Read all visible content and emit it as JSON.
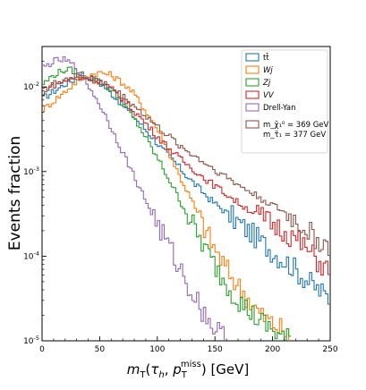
{
  "chart_data": {
    "type": "line",
    "style": "step-histogram",
    "xlabel": "m_T(τ_h, p_T^miss) [GeV]",
    "ylabel": "Events fraction",
    "xlim": [
      0,
      250
    ],
    "ylim": [
      1e-05,
      0.03
    ],
    "yscale": "log",
    "x_ticks": [
      0,
      50,
      100,
      150,
      200,
      250
    ],
    "y_ticks": [
      {
        "value": 0.01,
        "base": "10",
        "exp": "-2"
      },
      {
        "value": 0.001,
        "base": "10",
        "exp": "-3"
      },
      {
        "value": 0.0001,
        "base": "10",
        "exp": "-4"
      },
      {
        "value": 1e-05,
        "base": "10",
        "exp": "-5"
      }
    ],
    "grid": false,
    "legend_position": "top-right",
    "series": [
      {
        "name": "tt̄",
        "color": "#1f77b4",
        "points": [
          [
            2,
            0.0075
          ],
          [
            10,
            0.0088
          ],
          [
            20,
            0.0108
          ],
          [
            30,
            0.0125
          ],
          [
            38,
            0.0133
          ],
          [
            45,
            0.0125
          ],
          [
            55,
            0.0098
          ],
          [
            65,
            0.0072
          ],
          [
            75,
            0.0052
          ],
          [
            85,
            0.0037
          ],
          [
            95,
            0.0026
          ],
          [
            105,
            0.0018
          ],
          [
            115,
            0.0013
          ],
          [
            125,
            0.0009
          ],
          [
            135,
            0.00066
          ],
          [
            145,
            0.00048
          ],
          [
            155,
            0.00037
          ],
          [
            165,
            0.00029
          ],
          [
            175,
            0.00022
          ],
          [
            185,
            0.00017
          ],
          [
            195,
            0.00013
          ],
          [
            205,
            0.0001
          ],
          [
            215,
            8e-05
          ],
          [
            225,
            6e-05
          ],
          [
            235,
            4.5e-05
          ],
          [
            245,
            3.5e-05
          ],
          [
            250,
            3.2e-05
          ]
        ]
      },
      {
        "name": "Wj",
        "color": "#ff7f0e",
        "points": [
          [
            2,
            0.0055
          ],
          [
            10,
            0.0068
          ],
          [
            20,
            0.0088
          ],
          [
            30,
            0.0115
          ],
          [
            40,
            0.0138
          ],
          [
            50,
            0.0148
          ],
          [
            60,
            0.0138
          ],
          [
            70,
            0.0112
          ],
          [
            80,
            0.0082
          ],
          [
            90,
            0.0052
          ],
          [
            100,
            0.0032
          ],
          [
            110,
            0.0017
          ],
          [
            120,
            0.00085
          ],
          [
            130,
            0.00045
          ],
          [
            140,
            0.00023
          ],
          [
            150,
            0.00012
          ],
          [
            160,
            7e-05
          ],
          [
            170,
            4.5e-05
          ],
          [
            180,
            3e-05
          ],
          [
            190,
            2e-05
          ],
          [
            200,
            1.6e-05
          ],
          [
            210,
            1.3e-05
          ],
          [
            215,
            1e-05
          ]
        ]
      },
      {
        "name": "Zj",
        "color": "#2ca02c",
        "points": [
          [
            2,
            0.011
          ],
          [
            10,
            0.0138
          ],
          [
            20,
            0.016
          ],
          [
            28,
            0.0155
          ],
          [
            35,
            0.0142
          ],
          [
            45,
            0.0125
          ],
          [
            55,
            0.0105
          ],
          [
            65,
            0.0078
          ],
          [
            75,
            0.0052
          ],
          [
            85,
            0.0033
          ],
          [
            95,
            0.0019
          ],
          [
            105,
            0.0011
          ],
          [
            115,
            0.0006
          ],
          [
            125,
            0.00033
          ],
          [
            135,
            0.00018
          ],
          [
            145,
            0.0001
          ],
          [
            155,
            6e-05
          ],
          [
            165,
            3.8e-05
          ],
          [
            175,
            2.6e-05
          ],
          [
            185,
            1.9e-05
          ],
          [
            195,
            1.5e-05
          ],
          [
            205,
            1.2e-05
          ],
          [
            215,
            1e-05
          ]
        ]
      },
      {
        "name": "VV",
        "color": "#d62728",
        "points": [
          [
            2,
            0.0095
          ],
          [
            10,
            0.0105
          ],
          [
            20,
            0.0118
          ],
          [
            30,
            0.0128
          ],
          [
            40,
            0.0128
          ],
          [
            50,
            0.0115
          ],
          [
            60,
            0.0095
          ],
          [
            70,
            0.0072
          ],
          [
            80,
            0.0052
          ],
          [
            90,
            0.0037
          ],
          [
            100,
            0.0026
          ],
          [
            110,
            0.0019
          ],
          [
            120,
            0.0014
          ],
          [
            130,
            0.0011
          ],
          [
            140,
            0.00085
          ],
          [
            150,
            0.00068
          ],
          [
            160,
            0.00054
          ],
          [
            170,
            0.00043
          ],
          [
            180,
            0.00035
          ],
          [
            190,
            0.00029
          ],
          [
            200,
            0.00024
          ],
          [
            210,
            0.0002
          ],
          [
            220,
            0.00016
          ],
          [
            230,
            0.00012
          ],
          [
            240,
            8.5e-05
          ],
          [
            250,
            6.5e-05
          ]
        ]
      },
      {
        "name": "Drell-Yan",
        "color": "#9467bd",
        "points": [
          [
            2,
            0.017
          ],
          [
            10,
            0.02
          ],
          [
            18,
            0.021
          ],
          [
            25,
            0.019
          ],
          [
            32,
            0.0155
          ],
          [
            40,
            0.0105
          ],
          [
            50,
            0.0062
          ],
          [
            60,
            0.0033
          ],
          [
            70,
            0.0017
          ],
          [
            80,
            0.00088
          ],
          [
            90,
            0.00045
          ],
          [
            100,
            0.00024
          ],
          [
            110,
            0.00013
          ],
          [
            120,
            7e-05
          ],
          [
            130,
            3.8e-05
          ],
          [
            140,
            2.2e-05
          ],
          [
            150,
            1.4e-05
          ],
          [
            160,
            1e-05
          ]
        ]
      },
      {
        "name": "m_χ̃₁⁰ = 369 GeV, m_τ̃₁ = 377 GeV",
        "color": "#8c564b",
        "points": [
          [
            2,
            0.0085
          ],
          [
            10,
            0.0108
          ],
          [
            20,
            0.0125
          ],
          [
            30,
            0.0132
          ],
          [
            40,
            0.0128
          ],
          [
            50,
            0.0118
          ],
          [
            60,
            0.0098
          ],
          [
            70,
            0.0078
          ],
          [
            80,
            0.006
          ],
          [
            90,
            0.0045
          ],
          [
            100,
            0.0034
          ],
          [
            110,
            0.0026
          ],
          [
            120,
            0.002
          ],
          [
            130,
            0.0016
          ],
          [
            140,
            0.0013
          ],
          [
            150,
            0.00105
          ],
          [
            160,
            0.00086
          ],
          [
            170,
            0.0007
          ],
          [
            180,
            0.00058
          ],
          [
            190,
            0.00048
          ],
          [
            200,
            0.0004
          ],
          [
            210,
            0.00033
          ],
          [
            220,
            0.00026
          ],
          [
            230,
            0.0002
          ],
          [
            240,
            0.00015
          ],
          [
            250,
            0.00013
          ]
        ]
      }
    ],
    "legend_entries": [
      {
        "label": "tt̄",
        "color": "#1f77b4"
      },
      {
        "label": "Wj",
        "color": "#ff7f0e"
      },
      {
        "label": "Zj",
        "color": "#2ca02c"
      },
      {
        "label": "VV",
        "color": "#d62728"
      },
      {
        "label": "Drell-Yan",
        "color": "#9467bd"
      },
      {
        "label_line1": "m_χ̃₁⁰ = 369 GeV",
        "label_line2": "m_τ̃₁ = 377 GeV",
        "color": "#8c564b"
      }
    ]
  }
}
